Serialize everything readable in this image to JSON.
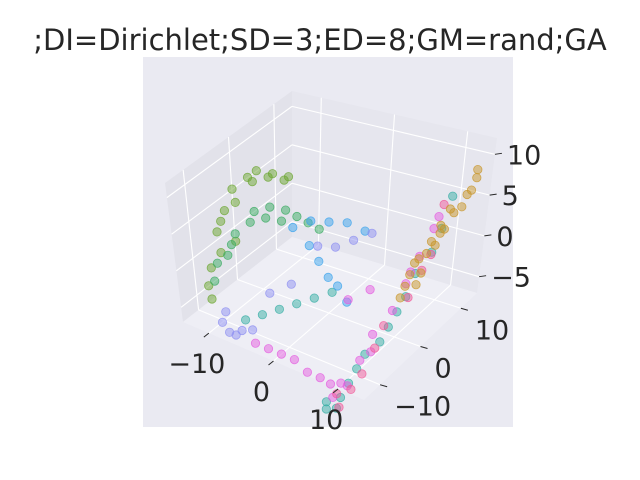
{
  "chart_data": {
    "type": "scatter3d",
    "title": ";DI=Dirichlet;SD=3;ED=8;GM=rand;GA",
    "xlabel": "",
    "ylabel": "",
    "zlabel": "",
    "grid": true,
    "x_ticks": [
      "−10",
      "0",
      "10"
    ],
    "y_ticks": [
      "−10",
      "0",
      "10"
    ],
    "z_ticks": [
      "−5",
      "0",
      "5",
      "10"
    ],
    "xlim": [
      -14,
      14
    ],
    "ylim": [
      -14,
      14
    ],
    "zlim": [
      -7,
      12
    ],
    "colors": {
      "figure_bg": "#ffffff",
      "axes_bg": "#eaeaf2",
      "pane_left": "#e2e2ea",
      "pane_back": "#e6e6ee",
      "pane_floor": "#eeeef5",
      "text": "#262626"
    },
    "series": [
      {
        "color": "#6ba630",
        "points": [
          [
            -12,
            -7,
            3
          ],
          [
            -12,
            -5,
            5
          ],
          [
            -12,
            -3,
            7
          ],
          [
            -11,
            -1,
            8
          ],
          [
            -11,
            1,
            8
          ],
          [
            -10,
            3,
            7
          ],
          [
            -9,
            5,
            6
          ],
          [
            -12,
            -6,
            4
          ],
          [
            -11,
            -4,
            6
          ],
          [
            -11,
            0,
            7
          ],
          [
            -10,
            2,
            7
          ],
          [
            -9,
            4,
            6
          ],
          [
            -12,
            -9,
            -1
          ],
          [
            -12,
            -10,
            -3
          ],
          [
            -11,
            -8,
            1
          ],
          [
            -10,
            -6,
            2
          ],
          [
            -11,
            -11,
            -4
          ]
        ]
      },
      {
        "color": "#3aab62",
        "points": [
          [
            -11,
            -9,
            0
          ],
          [
            -10,
            -8,
            1
          ],
          [
            -10,
            -6,
            3
          ],
          [
            -9,
            -4,
            4
          ],
          [
            -9,
            -3,
            5
          ],
          [
            -8,
            -1,
            5
          ],
          [
            -7,
            1,
            4
          ],
          [
            -6,
            2,
            3
          ],
          [
            -11,
            -10,
            -2
          ],
          [
            -10,
            -7,
            2
          ],
          [
            -8,
            -2,
            4
          ],
          [
            -7,
            0,
            3
          ],
          [
            -5,
            3,
            2
          ],
          [
            -4,
            4,
            1
          ]
        ]
      },
      {
        "color": "#36ada4",
        "points": [
          [
            -6,
            -11,
            -5
          ],
          [
            -4,
            -10,
            -4
          ],
          [
            -2,
            -9,
            -3
          ],
          [
            0,
            -8,
            -2
          ],
          [
            2,
            -7,
            -1
          ],
          [
            4,
            -6,
            0
          ],
          [
            9,
            2,
            -5
          ],
          [
            9,
            4,
            -4
          ],
          [
            9,
            6,
            -2
          ],
          [
            10,
            8,
            0
          ],
          [
            10,
            10,
            2
          ],
          [
            10,
            12,
            5
          ],
          [
            9,
            0,
            -6
          ],
          [
            9,
            -2,
            -7
          ],
          [
            8,
            -4,
            -8
          ],
          [
            8,
            -6,
            -9
          ],
          [
            8,
            -8,
            -10
          ],
          [
            8,
            -10,
            -11
          ],
          [
            7,
            -12,
            -12
          ],
          [
            7,
            -12,
            -11
          ],
          [
            8,
            -11,
            -12
          ]
        ]
      },
      {
        "color": "#3ba3ec",
        "points": [
          [
            -6,
            1,
            2
          ],
          [
            -4,
            2,
            3
          ],
          [
            -2,
            3,
            3
          ],
          [
            0,
            4,
            3
          ],
          [
            2,
            5,
            2
          ],
          [
            -3,
            0,
            1
          ],
          [
            -1,
            -1,
            0
          ],
          [
            1,
            -2,
            -1
          ],
          [
            3,
            -3,
            -1
          ],
          [
            5,
            -4,
            -2
          ]
        ]
      },
      {
        "color": "#8e8ff2",
        "points": [
          [
            -9,
            -12,
            -6
          ],
          [
            -8,
            -12,
            -7
          ],
          [
            -7,
            -12,
            -7
          ],
          [
            -6,
            -12,
            -6
          ],
          [
            -5,
            -11,
            -6
          ],
          [
            -9,
            -11,
            -5
          ],
          [
            -3,
            2,
            0
          ],
          [
            -1,
            3,
            0
          ],
          [
            1,
            4,
            1
          ],
          [
            3,
            5,
            2
          ],
          [
            -4,
            -8,
            -2
          ],
          [
            -2,
            -6,
            -1
          ]
        ]
      },
      {
        "color": "#e45ee0",
        "points": [
          [
            -4,
            -12,
            -7
          ],
          [
            -2,
            -12,
            -7
          ],
          [
            0,
            -12,
            -7
          ],
          [
            2,
            -12,
            -7
          ],
          [
            4,
            -12,
            -8
          ],
          [
            6,
            -12,
            -8
          ],
          [
            7,
            -11,
            -9
          ],
          [
            8,
            -10,
            -9
          ],
          [
            9,
            -7,
            -7
          ],
          [
            9,
            -4,
            -5
          ],
          [
            10,
            -1,
            -3
          ],
          [
            10,
            2,
            -1
          ],
          [
            10,
            5,
            1
          ],
          [
            10,
            8,
            3
          ],
          [
            8,
            -12,
            -10
          ],
          [
            9,
            -10,
            -9
          ],
          [
            10,
            -6,
            -6
          ],
          [
            10,
            3,
            0
          ],
          [
            10,
            9,
            4
          ],
          [
            6,
            0,
            -2
          ],
          [
            4,
            -2,
            -3
          ]
        ]
      },
      {
        "color": "#f05a9a",
        "points": [
          [
            9,
            -12,
            -11
          ],
          [
            8,
            -11,
            -10
          ],
          [
            10,
            -8,
            -8
          ],
          [
            10,
            -3,
            -4
          ],
          [
            11,
            1,
            -2
          ],
          [
            11,
            6,
            1
          ],
          [
            10,
            10,
            5
          ],
          [
            9,
            -9,
            -10
          ],
          [
            10,
            -5,
            -6
          ],
          [
            11,
            4,
            0
          ]
        ]
      },
      {
        "color": "#c8952a",
        "points": [
          [
            11,
            1,
            1
          ],
          [
            11,
            2,
            2
          ],
          [
            12,
            3,
            3
          ],
          [
            12,
            4,
            4
          ],
          [
            12,
            6,
            5
          ],
          [
            12,
            8,
            6
          ],
          [
            13,
            10,
            7
          ],
          [
            13,
            12,
            8
          ],
          [
            11,
            0,
            0
          ],
          [
            12,
            5,
            3
          ],
          [
            12,
            7,
            4
          ],
          [
            13,
            9,
            6
          ],
          [
            13,
            11,
            7
          ],
          [
            12,
            2,
            1
          ],
          [
            11,
            3,
            2
          ],
          [
            12,
            1,
            0
          ],
          [
            13,
            12,
            9
          ],
          [
            12,
            9,
            5
          ],
          [
            11,
            -1,
            -1
          ],
          [
            12,
            6,
            4
          ]
        ]
      }
    ]
  }
}
